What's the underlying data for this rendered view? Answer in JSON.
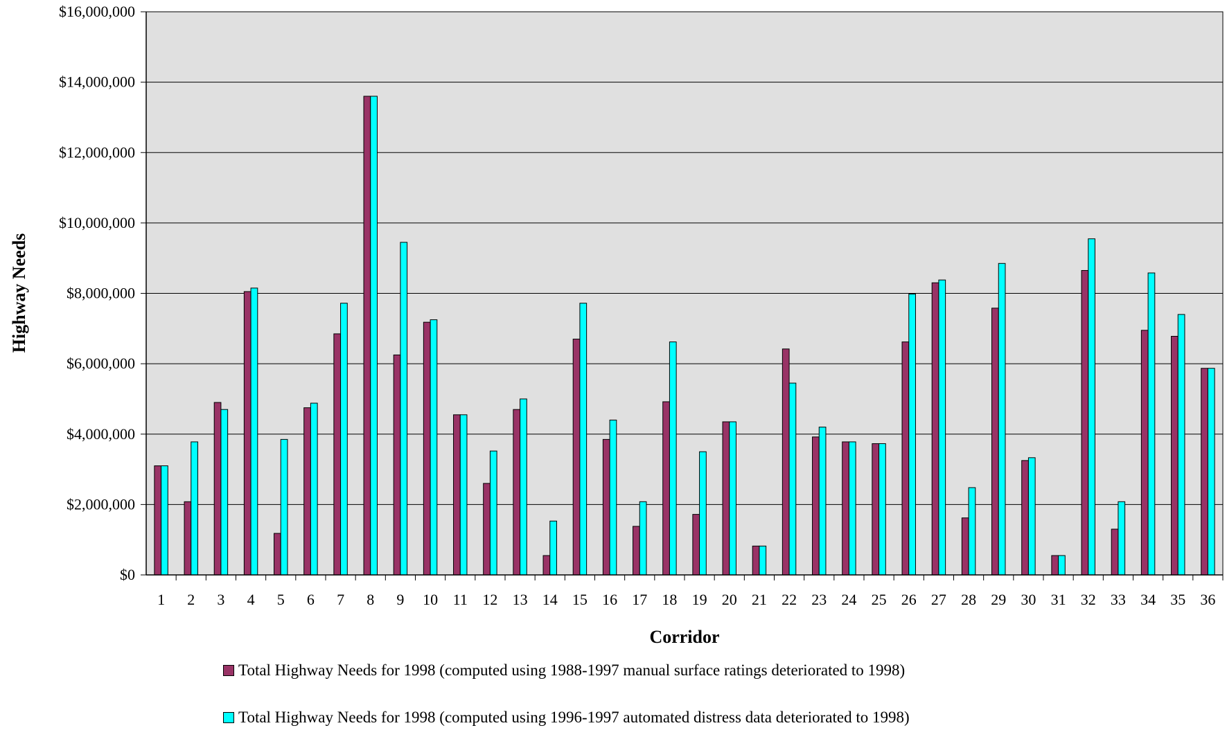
{
  "chart_data": {
    "type": "bar",
    "title": "",
    "xlabel": "Corridor",
    "ylabel": "Highway Needs",
    "ylim": [
      0,
      16000000
    ],
    "yticks": [
      "$0",
      "$2,000,000",
      "$4,000,000",
      "$6,000,000",
      "$8,000,000",
      "$10,000,000",
      "$12,000,000",
      "$14,000,000",
      "$16,000,000"
    ],
    "grid": true,
    "legend_position": "bottom",
    "categories": [
      "1",
      "2",
      "3",
      "4",
      "5",
      "6",
      "7",
      "8",
      "9",
      "10",
      "11",
      "12",
      "13",
      "14",
      "15",
      "16",
      "17",
      "18",
      "19",
      "20",
      "21",
      "22",
      "23",
      "24",
      "25",
      "26",
      "27",
      "28",
      "29",
      "30",
      "31",
      "32",
      "33",
      "34",
      "35",
      "36"
    ],
    "series": [
      {
        "name": "Total Highway Needs for 1998 (computed using 1988-1997 manual surface ratings deteriorated to 1998)",
        "color": "#993366",
        "values": [
          3100000,
          2080000,
          4900000,
          8050000,
          1180000,
          4750000,
          6850000,
          13600000,
          6250000,
          7180000,
          4550000,
          2600000,
          4700000,
          550000,
          6700000,
          3850000,
          1380000,
          4920000,
          1720000,
          4350000,
          820000,
          6420000,
          3920000,
          3780000,
          3730000,
          6620000,
          8300000,
          1620000,
          7580000,
          3250000,
          550000,
          8650000,
          1300000,
          6950000,
          6780000,
          5870000
        ]
      },
      {
        "name": "Total Highway Needs for 1998 (computed using 1996-1997 automated distress data deteriorated to 1998)",
        "color": "#00ffff",
        "values": [
          3100000,
          3780000,
          4700000,
          8150000,
          3850000,
          4880000,
          7720000,
          13600000,
          9450000,
          7250000,
          4550000,
          3520000,
          5000000,
          1530000,
          7720000,
          4400000,
          2080000,
          6620000,
          3500000,
          4350000,
          820000,
          5450000,
          4200000,
          3780000,
          3730000,
          7980000,
          8380000,
          2480000,
          8850000,
          3330000,
          550000,
          9550000,
          2080000,
          8580000,
          7400000,
          5870000
        ]
      }
    ]
  }
}
